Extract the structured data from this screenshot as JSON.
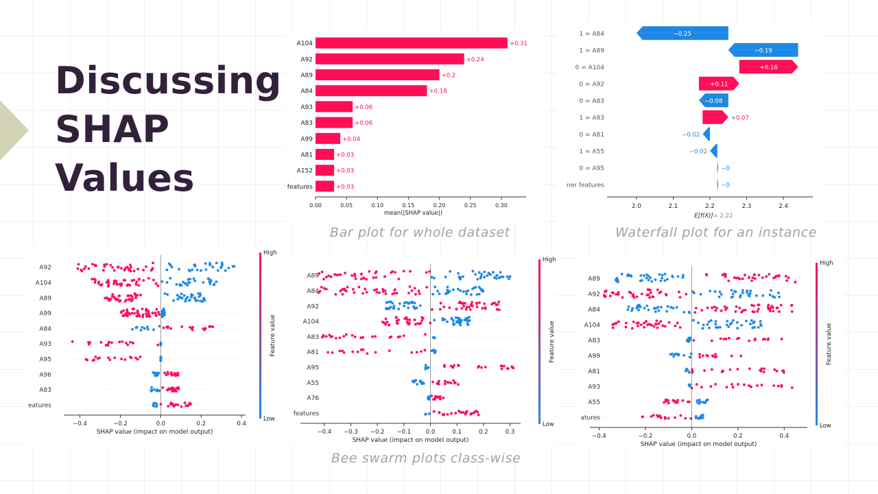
{
  "slide": {
    "title_lines": [
      "Discussing",
      "SHAP",
      "Values"
    ],
    "captions": {
      "bar": "Bar plot for whole dataset",
      "waterfall": "Waterfall plot for an instance",
      "beeswarm": "Bee swarm plots class-wise"
    }
  },
  "colors": {
    "positive": "#ff0d57",
    "negative": "#1e88e5",
    "title": "#33203a",
    "accent_arrow": "#d3d3b6"
  },
  "chart_data": [
    {
      "type": "bar",
      "categories": [
        "A104",
        "A92",
        "A89",
        "A84",
        "A93",
        "A83",
        "A99",
        "A81",
        "A152",
        "r features"
      ],
      "values": [
        0.31,
        0.24,
        0.2,
        0.18,
        0.06,
        0.06,
        0.04,
        0.03,
        0.03,
        0.03
      ],
      "value_labels": [
        "+0.31",
        "+0.24",
        "+0.2",
        "+0.18",
        "+0.06",
        "+0.06",
        "+0.04",
        "+0.03",
        "+0.03",
        "+0.03"
      ],
      "xlabel": "mean(|SHAP value|)",
      "xticks": [
        "0.00",
        "0.05",
        "0.10",
        "0.15",
        "0.20",
        "0.25",
        "0.30"
      ],
      "xlim": [
        0,
        0.34
      ],
      "color": "#ff0d57"
    },
    {
      "type": "bar",
      "subtype": "waterfall",
      "categories": [
        "1 = A84",
        "1 = A89",
        "0 = A104",
        "0 = A92",
        "0 = A83",
        "1 = A93",
        "0 = A81",
        "1 = A55",
        "0 = A95",
        "ner features"
      ],
      "values": [
        -0.25,
        -0.19,
        0.16,
        0.11,
        -0.08,
        0.07,
        -0.02,
        -0.02,
        0,
        0
      ],
      "value_labels": [
        "−0.25",
        "−0.19",
        "+0.16",
        "+0.11",
        "−0.08",
        "+0.07",
        "−0.02",
        "−0.02",
        "−0",
        "−0"
      ],
      "base_value": 2.22,
      "xlabel": "E[f(X)]",
      "xlabel_value": " = 2.22",
      "xticks": [
        "2.0",
        "2.1",
        "2.2",
        "2.3",
        "2.4"
      ],
      "xlim": [
        1.92,
        2.48
      ]
    },
    {
      "type": "scatter",
      "subtype": "beeswarm",
      "features": [
        "A92",
        "A104",
        "A89",
        "A99",
        "A84",
        "A93",
        "A95",
        "A96",
        "A83",
        "eatures"
      ],
      "feature_ranges": [
        [
          -0.42,
          0.38
        ],
        [
          -0.35,
          0.28
        ],
        [
          -0.28,
          0.22
        ],
        [
          -0.2,
          0.02
        ],
        [
          -0.15,
          0.26
        ],
        [
          -0.45,
          0.0
        ],
        [
          -0.37,
          0.0
        ],
        [
          -0.05,
          0.09
        ],
        [
          -0.05,
          0.09
        ],
        [
          -0.04,
          0.15
        ]
      ],
      "xlabel": "SHAP value (impact on model output)",
      "xticks": [
        "−0.4",
        "−0.2",
        "0.0",
        "0.2",
        "0.4"
      ],
      "xlim": [
        -0.48,
        0.42
      ],
      "colorbar": {
        "label": "Feature value",
        "high": "High",
        "low": "Low"
      }
    },
    {
      "type": "scatter",
      "subtype": "beeswarm",
      "features": [
        "A89",
        "A84",
        "A92",
        "A104",
        "A83",
        "A81",
        "A95",
        "A55",
        "A76",
        "features"
      ],
      "feature_ranges": [
        [
          -0.43,
          0.3
        ],
        [
          -0.43,
          0.2
        ],
        [
          -0.17,
          0.26
        ],
        [
          -0.18,
          0.15
        ],
        [
          -0.43,
          0.02
        ],
        [
          -0.39,
          0.02
        ],
        [
          -0.02,
          0.32
        ],
        [
          -0.07,
          0.12
        ],
        [
          -0.01,
          0.05
        ],
        [
          -0.02,
          0.19
        ]
      ],
      "xlabel": "SHAP value (impact on model output)",
      "xticks": [
        "−0.4",
        "−0.3",
        "−0.2",
        "−0.1",
        "0.0",
        "0.1",
        "0.2",
        "0.3"
      ],
      "xlim": [
        -0.49,
        0.34
      ],
      "colorbar": {
        "label": "Feature value",
        "high": "High",
        "low": "Low"
      }
    },
    {
      "type": "scatter",
      "subtype": "beeswarm",
      "features": [
        "A89",
        "A92",
        "A84",
        "A104",
        "A83",
        "A99",
        "A81",
        "A93",
        "A55",
        "atures"
      ],
      "feature_ranges": [
        [
          -0.34,
          0.45
        ],
        [
          -0.39,
          0.38
        ],
        [
          -0.28,
          0.45
        ],
        [
          -0.35,
          0.32
        ],
        [
          -0.02,
          0.4
        ],
        [
          -0.1,
          0.22
        ],
        [
          -0.03,
          0.4
        ],
        [
          -0.02,
          0.45
        ],
        [
          -0.12,
          0.07
        ],
        [
          -0.22,
          0.05
        ]
      ],
      "xlabel": "SHAP value (impact on model output)",
      "xticks": [
        "−0.4",
        "−0.2",
        "0.0",
        "0.2",
        "0.4"
      ],
      "xlim": [
        -0.44,
        0.5
      ],
      "colorbar": {
        "label": "Feature value",
        "high": "High",
        "low": "Low"
      }
    }
  ]
}
